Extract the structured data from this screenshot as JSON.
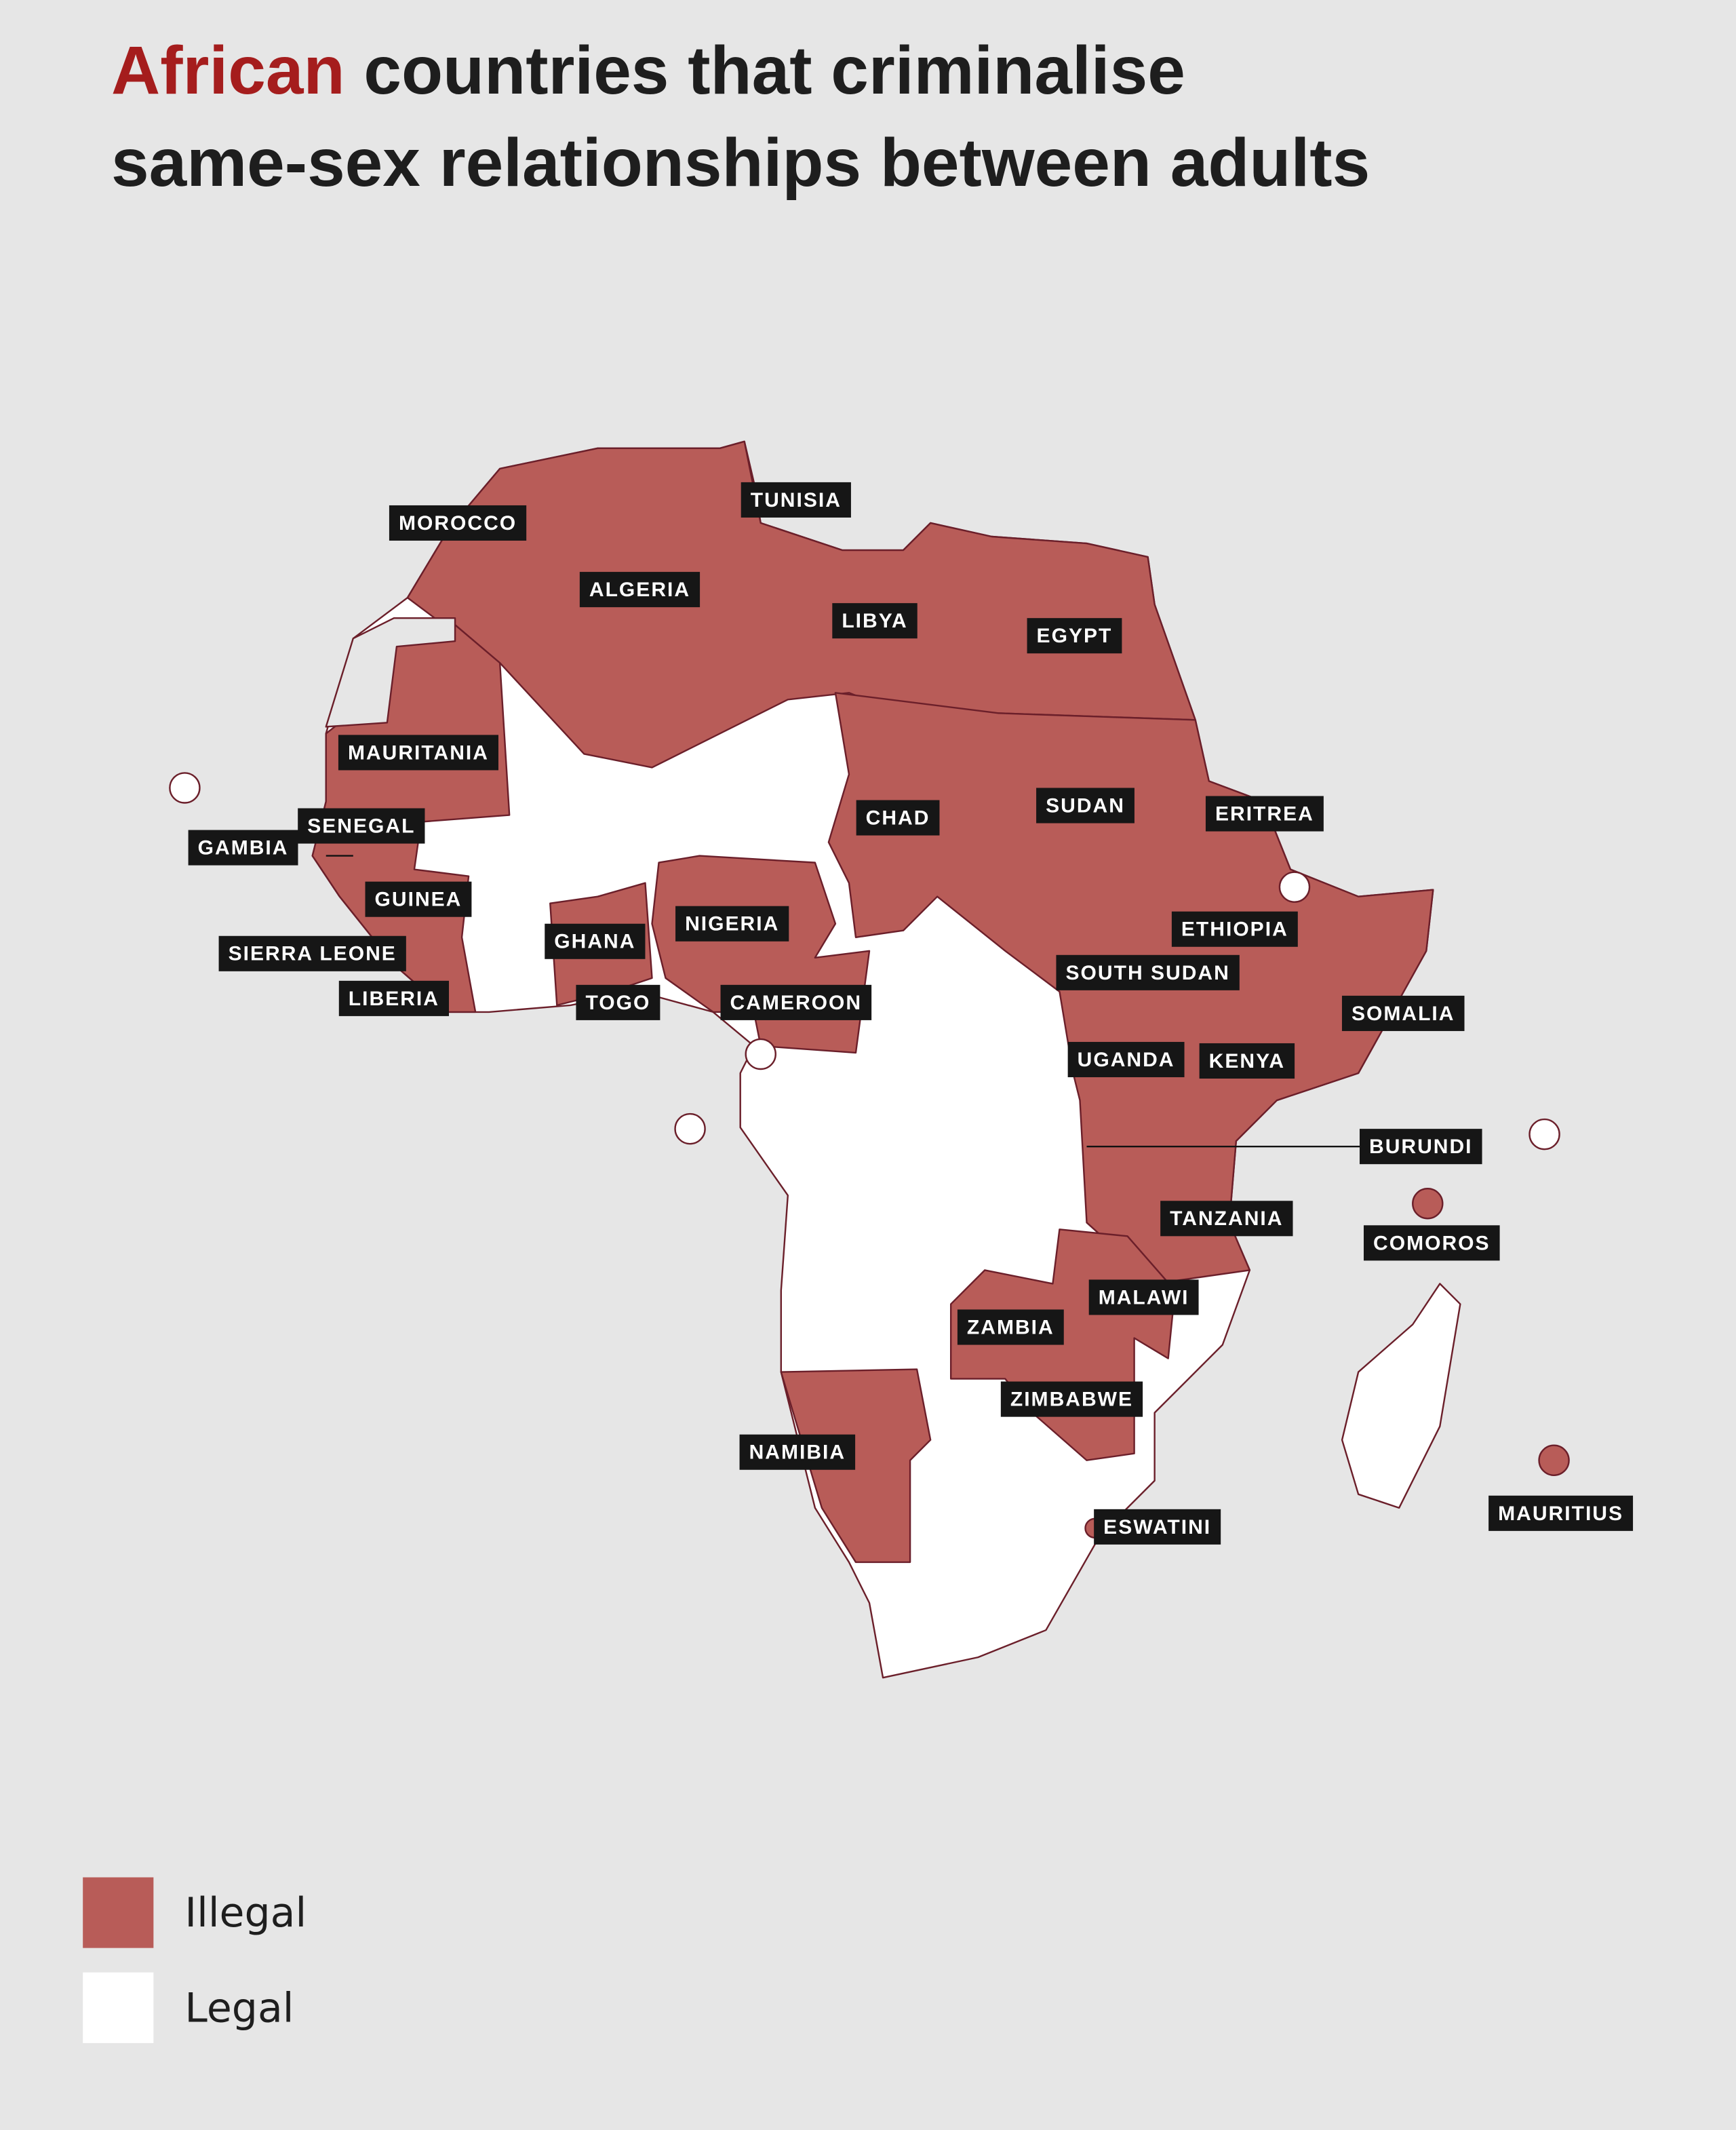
{
  "title": {
    "highlight": "African",
    "line1": "countries that criminalise",
    "line2": "same-sex relationships between adults"
  },
  "countries": [
    {
      "label": "MOROCCO",
      "status": "illegal"
    },
    {
      "label": "ALGERIA",
      "status": "illegal"
    },
    {
      "label": "TUNISIA",
      "status": "illegal"
    },
    {
      "label": "LIBYA",
      "status": "illegal"
    },
    {
      "label": "EGYPT",
      "status": "illegal"
    },
    {
      "label": "MAURITANIA",
      "status": "illegal"
    },
    {
      "label": "SENEGAL",
      "status": "illegal"
    },
    {
      "label": "GAMBIA",
      "status": "illegal"
    },
    {
      "label": "GUINEA",
      "status": "illegal"
    },
    {
      "label": "SIERRA LEONE",
      "status": "illegal"
    },
    {
      "label": "LIBERIA",
      "status": "illegal"
    },
    {
      "label": "GHANA",
      "status": "illegal"
    },
    {
      "label": "TOGO",
      "status": "illegal"
    },
    {
      "label": "NIGERIA",
      "status": "illegal"
    },
    {
      "label": "CAMEROON",
      "status": "illegal"
    },
    {
      "label": "CHAD",
      "status": "illegal"
    },
    {
      "label": "SUDAN",
      "status": "illegal"
    },
    {
      "label": "ERITREA",
      "status": "illegal"
    },
    {
      "label": "ETHIOPIA",
      "status": "illegal"
    },
    {
      "label": "SOUTH SUDAN",
      "status": "illegal"
    },
    {
      "label": "SOMALIA",
      "status": "illegal"
    },
    {
      "label": "UGANDA",
      "status": "illegal"
    },
    {
      "label": "KENYA",
      "status": "illegal"
    },
    {
      "label": "BURUNDI",
      "status": "illegal"
    },
    {
      "label": "TANZANIA",
      "status": "illegal"
    },
    {
      "label": "COMOROS",
      "status": "illegal"
    },
    {
      "label": "MALAWI",
      "status": "illegal"
    },
    {
      "label": "ZAMBIA",
      "status": "illegal"
    },
    {
      "label": "ZIMBABWE",
      "status": "illegal"
    },
    {
      "label": "NAMIBIA",
      "status": "illegal"
    },
    {
      "label": "ESWATINI",
      "status": "illegal"
    },
    {
      "label": "MAURITIUS",
      "status": "illegal"
    }
  ],
  "legend": [
    {
      "label": "Illegal",
      "color": "#b85c58"
    },
    {
      "label": "Legal",
      "color": "#ffffff"
    }
  ]
}
